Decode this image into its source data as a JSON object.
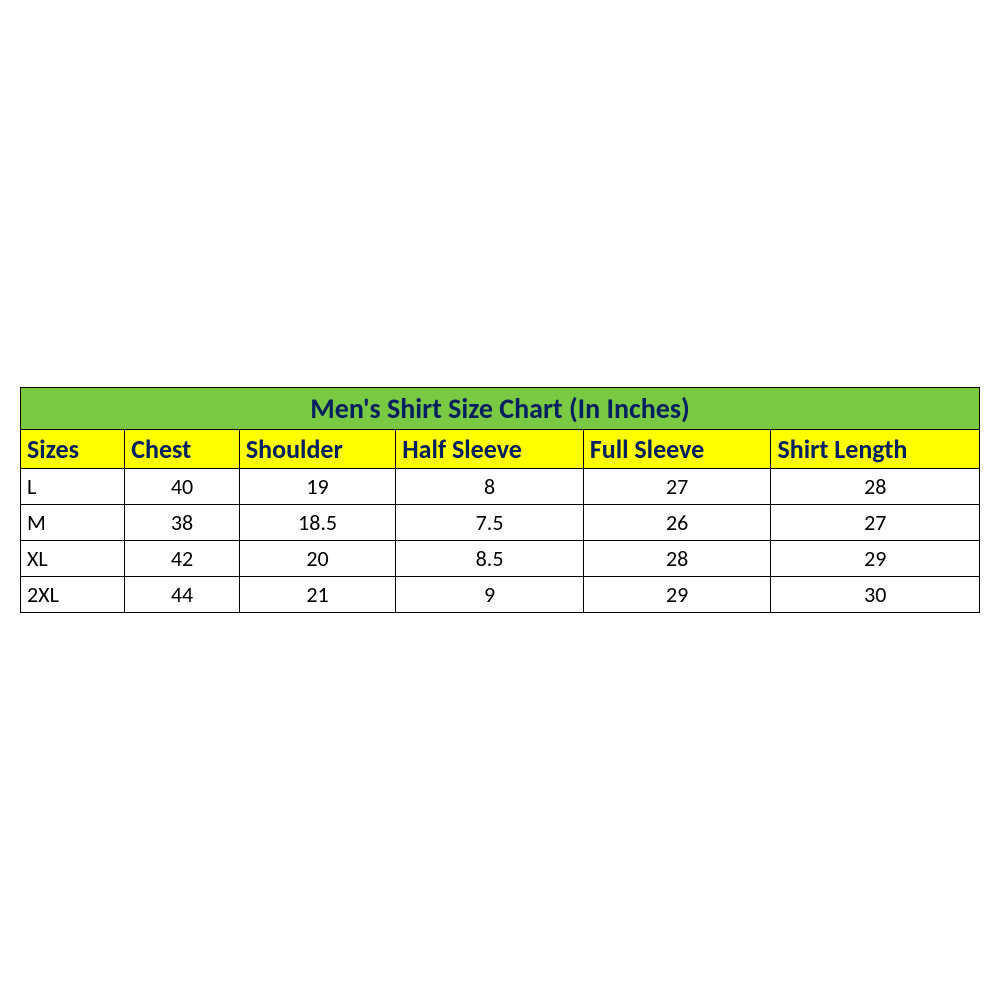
{
  "table": {
    "type": "table",
    "title": "Men's Shirt Size Chart (In Inches)",
    "title_bg_color": "#7ac943",
    "title_text_color": "#002060",
    "title_fontsize": 28,
    "header_bg_color": "#ffff00",
    "header_text_color": "#002060",
    "header_fontsize": 26,
    "cell_bg_color": "#ffffff",
    "cell_text_color": "#000000",
    "cell_fontsize": 22,
    "border_color": "#000000",
    "columns": [
      "Sizes",
      "Chest",
      "Shoulder",
      "Half Sleeve",
      "Full Sleeve",
      "Shirt Length"
    ],
    "rows": [
      [
        "L",
        "40",
        "19",
        "8",
        "27",
        "28"
      ],
      [
        "M",
        "38",
        "18.5",
        "7.5",
        "26",
        "27"
      ],
      [
        "XL",
        "42",
        "20",
        "8.5",
        "28",
        "29"
      ],
      [
        "2XL",
        "44",
        "21",
        "9",
        "29",
        "30"
      ]
    ]
  }
}
